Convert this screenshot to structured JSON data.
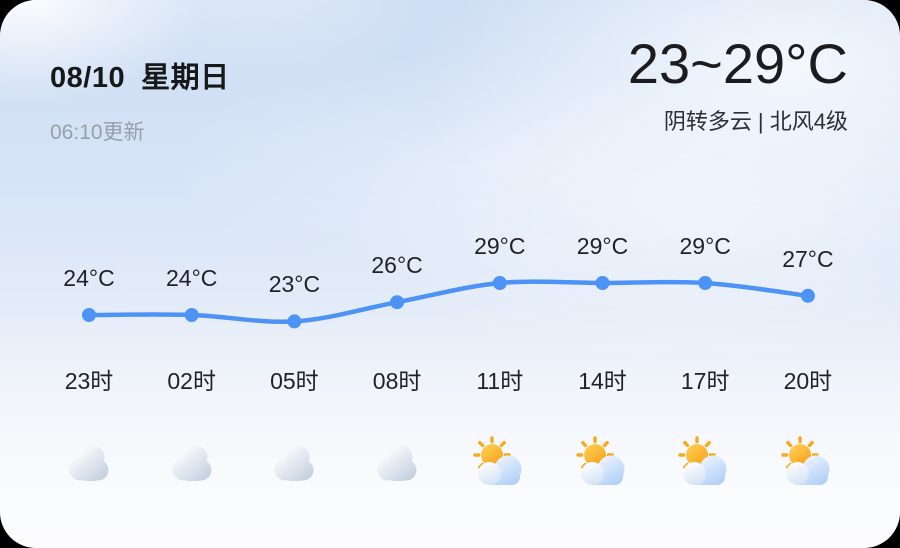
{
  "header": {
    "date": "08/10",
    "weekday": "星期日",
    "update_time": "06:10更新",
    "temp_range": "23~29°C",
    "condition": "阴转多云 | 北风4级"
  },
  "chart_data": {
    "type": "line",
    "title": "",
    "xlabel": "",
    "ylabel": "",
    "x": [
      "23时",
      "02时",
      "05时",
      "08时",
      "11时",
      "14时",
      "17时",
      "20时"
    ],
    "series": [
      {
        "name": "hourly-temperature",
        "values": [
          24,
          24,
          23,
          26,
          29,
          29,
          29,
          27
        ]
      }
    ],
    "point_labels": [
      "24°C",
      "24°C",
      "23°C",
      "26°C",
      "29°C",
      "29°C",
      "29°C",
      "27°C"
    ],
    "icons": [
      "cloudy",
      "cloudy",
      "cloudy",
      "cloudy",
      "partly-sunny",
      "partly-sunny",
      "partly-sunny",
      "partly-sunny"
    ],
    "line_color": "#4D93F5",
    "ylim": [
      22,
      30
    ],
    "grid": false,
    "legend": "none"
  },
  "colors": {
    "accent_blue": "#4D93F5",
    "sun_orange": "#F6A21C",
    "cloud_gray": "#BFCCDD",
    "cloud_blue": "#AECDF6",
    "text_primary": "#1C1C1E",
    "text_secondary": "#999FA8"
  }
}
